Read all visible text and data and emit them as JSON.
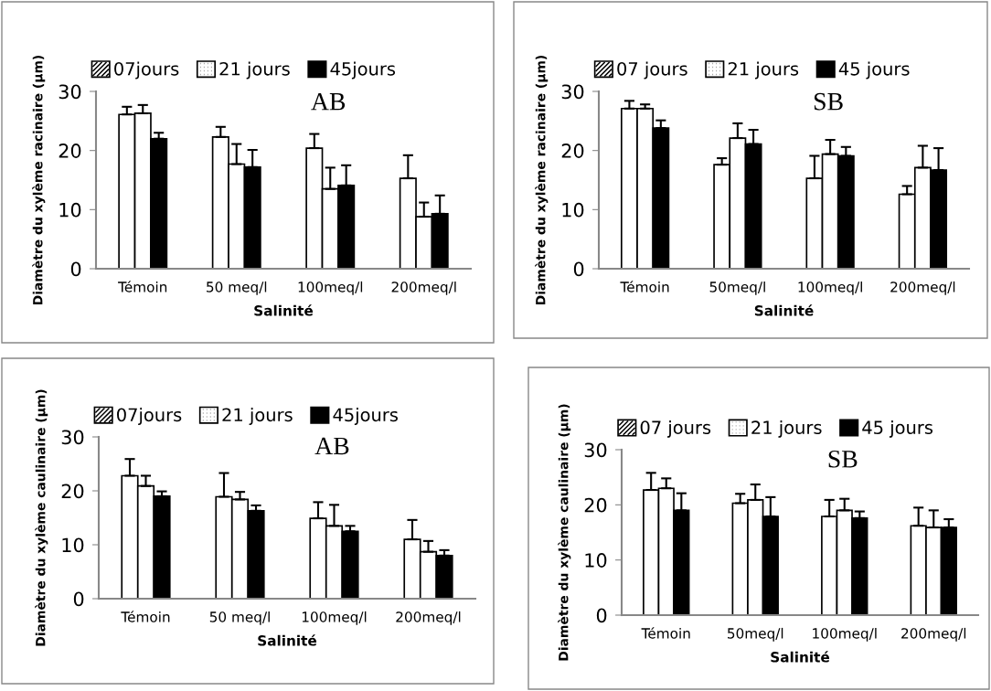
{
  "chart_data": [
    {
      "type": "bar",
      "xlabel": "Salinité",
      "ylabel": "Diamètre du xylème racinaire (µm)",
      "categories": [
        "Témoin",
        "50 meq/l",
        "100meq/l",
        "200meq/l"
      ],
      "ylim": [
        0,
        30
      ],
      "yticks": [
        0,
        10,
        20,
        30
      ],
      "legend": "top",
      "annotations": [
        "AB"
      ],
      "series": [
        {
          "name": "07jours",
          "color": "#ffffff",
          "values": [
            26.1,
            22.3,
            20.4,
            15.3
          ],
          "errors": [
            [
              26.1,
              27.4
            ],
            [
              22.3,
              24.0
            ],
            [
              20.4,
              22.8
            ],
            [
              15.3,
              19.2
            ]
          ]
        },
        {
          "name": "21 jours",
          "color": "#ffffff",
          "values": [
            26.3,
            17.7,
            13.5,
            8.8
          ],
          "errors": [
            [
              26.3,
              27.7
            ],
            [
              17.7,
              21.1
            ],
            [
              13.5,
              17.1
            ],
            [
              8.8,
              11.2
            ]
          ]
        },
        {
          "name": "45jours",
          "color": "#000000",
          "values": [
            22.0,
            17.2,
            14.1,
            9.3
          ],
          "errors": [
            [
              22.0,
              23.0
            ],
            [
              17.2,
              20.1
            ],
            [
              14.1,
              17.5
            ],
            [
              9.3,
              12.4
            ]
          ]
        }
      ]
    },
    {
      "type": "bar",
      "xlabel": "Salinité",
      "ylabel": "Diamètre du xylème racinaire (µm)",
      "categories": [
        "Témoin",
        "50meq/l",
        "100meq/l",
        "200meq/l"
      ],
      "ylim": [
        0,
        30
      ],
      "yticks": [
        0,
        10,
        20,
        30
      ],
      "legend": "top",
      "annotations": [
        "SB"
      ],
      "series": [
        {
          "name": "07 jours",
          "color": "#ffffff",
          "values": [
            27.1,
            17.6,
            15.3,
            12.6
          ],
          "errors": [
            [
              27.1,
              28.4
            ],
            [
              17.6,
              18.7
            ],
            [
              15.3,
              19.1
            ],
            [
              12.6,
              14.0
            ]
          ]
        },
        {
          "name": "21 jours",
          "color": "#ffffff",
          "values": [
            27.1,
            22.1,
            19.4,
            17.1
          ],
          "errors": [
            [
              27.1,
              27.8
            ],
            [
              22.1,
              24.6
            ],
            [
              19.4,
              21.8
            ],
            [
              17.1,
              20.8
            ]
          ]
        },
        {
          "name": "45 jours",
          "color": "#000000",
          "values": [
            23.8,
            21.1,
            19.1,
            16.7
          ],
          "errors": [
            [
              23.8,
              25.1
            ],
            [
              21.1,
              23.5
            ],
            [
              19.1,
              20.6
            ],
            [
              16.7,
              20.4
            ]
          ]
        }
      ]
    },
    {
      "type": "bar",
      "xlabel": "Salinité",
      "ylabel": "Diamètre du xylème caulinaire (µm)",
      "categories": [
        "Témoin",
        "50 meq/l",
        "100meq/l",
        "200meq/l"
      ],
      "ylim": [
        0,
        30
      ],
      "yticks": [
        0,
        10,
        20,
        30
      ],
      "legend": "top",
      "annotations": [
        "AB"
      ],
      "series": [
        {
          "name": "07jours",
          "color": "#ffffff",
          "values": [
            22.8,
            18.9,
            14.9,
            11.0
          ],
          "errors": [
            [
              22.8,
              25.9
            ],
            [
              18.9,
              23.3
            ],
            [
              14.9,
              17.9
            ],
            [
              11.0,
              14.6
            ]
          ]
        },
        {
          "name": "21 jours",
          "color": "#ffffff",
          "values": [
            20.9,
            18.4,
            13.5,
            8.7
          ],
          "errors": [
            [
              20.9,
              22.8
            ],
            [
              18.4,
              19.8
            ],
            [
              13.5,
              17.4
            ],
            [
              8.7,
              10.7
            ]
          ]
        },
        {
          "name": "45jours",
          "color": "#000000",
          "values": [
            19.0,
            16.3,
            12.5,
            8.0
          ],
          "errors": [
            [
              19.0,
              19.9
            ],
            [
              16.3,
              17.3
            ],
            [
              12.5,
              13.5
            ],
            [
              8.0,
              9.0
            ]
          ]
        }
      ]
    },
    {
      "type": "bar",
      "xlabel": "Salinité",
      "ylabel": "Diamètre du xylème caulinaire (µm)",
      "categories": [
        "Témoin",
        "50meq/l",
        "100meq/l",
        "200meq/l"
      ],
      "ylim": [
        0,
        30
      ],
      "yticks": [
        0,
        10,
        20,
        30
      ],
      "legend": "top",
      "annotations": [
        "SB"
      ],
      "series": [
        {
          "name": "07 jours",
          "color": "#ffffff",
          "values": [
            22.7,
            20.3,
            17.9,
            16.2
          ],
          "errors": [
            [
              22.7,
              25.8
            ],
            [
              20.3,
              22.0
            ],
            [
              17.9,
              20.9
            ],
            [
              16.2,
              19.5
            ]
          ]
        },
        {
          "name": "21 jours",
          "color": "#ffffff",
          "values": [
            23.0,
            20.9,
            19.0,
            15.9
          ],
          "errors": [
            [
              23.0,
              24.8
            ],
            [
              20.9,
              23.7
            ],
            [
              19.0,
              21.1
            ],
            [
              15.9,
              19.0
            ]
          ]
        },
        {
          "name": "45 jours",
          "color": "#000000",
          "values": [
            19.0,
            17.9,
            17.6,
            15.9
          ],
          "errors": [
            [
              19.0,
              22.1
            ],
            [
              17.9,
              21.4
            ],
            [
              17.6,
              18.8
            ],
            [
              15.9,
              17.4
            ]
          ]
        }
      ]
    }
  ]
}
